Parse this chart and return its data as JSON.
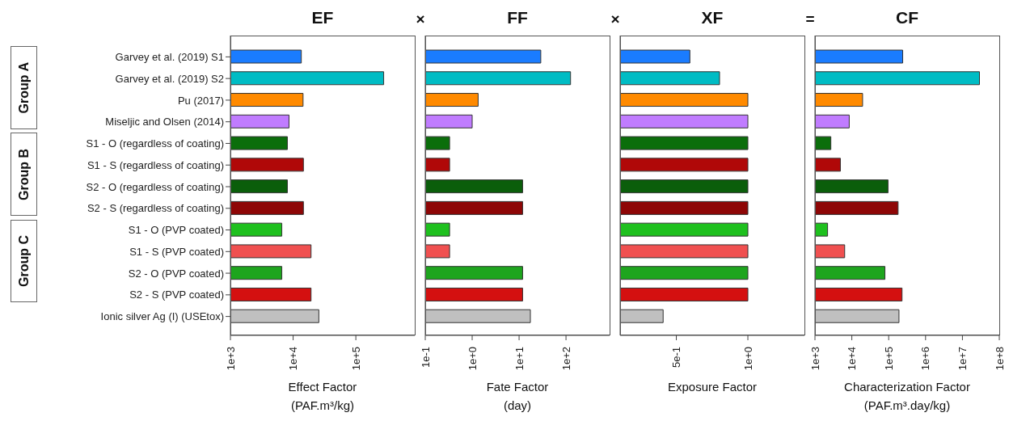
{
  "chart_data": [
    {
      "type": "bar",
      "orientation": "horizontal",
      "title": "EF",
      "xlabel": "Effect Factor\n(PAF.m³/kg)",
      "log": "x",
      "categories": [
        "Garvey et al. (2019) S1",
        "Garvey et al. (2019) S2",
        "Pu (2017)",
        "Miseljic and Olsen (2014)",
        "S1 - O (regardless of coating)",
        "S1 - S (regardless of coating)",
        "S2 - O (regardless of coating)",
        "S2 - S (regardless of coating)",
        "S1 - O (PVP coated)",
        "S1 - S (PVP coated)",
        "S2 - O  (PVP coated)",
        "S2 - S (PVP coated)",
        "Ionic silver Ag (I) (USEtox)"
      ],
      "values": [
        13500,
        278000,
        14400,
        8600,
        8100,
        14600,
        8100,
        14600,
        6600,
        19300,
        6600,
        19300,
        25700
      ],
      "colors": [
        "#1a7cff",
        "#00bcc4",
        "#ff8a00",
        "#c07cff",
        "#0b6e0b",
        "#b00808",
        "#0b5e0b",
        "#8e0606",
        "#1ec01e",
        "#f05050",
        "#1ea51e",
        "#d41010",
        "#c0c0c0"
      ],
      "xlim": [
        1000,
        870000
      ],
      "xticks": [
        {
          "value": 1000,
          "label": "1e+3"
        },
        {
          "value": 10000,
          "label": "1e+4"
        },
        {
          "value": 100000,
          "label": "1e+5"
        }
      ],
      "annotations": [
        "Group A",
        "Group B",
        "Group C"
      ]
    },
    {
      "type": "bar",
      "orientation": "horizontal",
      "title": "FF",
      "xlabel": "Fate Factor\n(day)",
      "log": "x",
      "tick_labels": "x",
      "categories": [
        null,
        null,
        null,
        null,
        null,
        null,
        null,
        null,
        null,
        null,
        null,
        null,
        null
      ],
      "values": [
        29,
        125,
        1.34,
        1.0,
        0.33,
        0.33,
        11.9,
        11.9,
        0.33,
        0.33,
        11.9,
        11.9,
        17.4
      ],
      "colors": [
        "#1a7cff",
        "#00bcc4",
        "#ff8a00",
        "#c07cff",
        "#0b6e0b",
        "#b00808",
        "#0b5e0b",
        "#8e0606",
        "#1ec01e",
        "#f05050",
        "#1ea51e",
        "#d41010",
        "#c0c0c0"
      ],
      "xlim": [
        0.1,
        850
      ],
      "xticks": [
        {
          "value": 0.1,
          "label": "1e-1"
        },
        {
          "value": 1,
          "label": "1e+0"
        },
        {
          "value": 10,
          "label": "1e+1"
        },
        {
          "value": 100,
          "label": "1e+2"
        }
      ],
      "annotations": [
        "×"
      ]
    },
    {
      "type": "bar",
      "orientation": "horizontal",
      "title": "XF",
      "xlabel": "Exposure Factor",
      "log": "x",
      "tick_labels": "x",
      "categories": [
        null,
        null,
        null,
        null,
        null,
        null,
        null,
        null,
        null,
        null,
        null,
        null,
        null
      ],
      "values": [
        0.57,
        0.76,
        1.0,
        1.0,
        1.0,
        1.0,
        1.0,
        1.0,
        1.0,
        1.0,
        1.0,
        1.0,
        0.44
      ],
      "colors": [
        "#1a7cff",
        "#00bcc4",
        "#ff8a00",
        "#c07cff",
        "#0b6e0b",
        "#b00808",
        "#0b5e0b",
        "#8e0606",
        "#1ec01e",
        "#f05050",
        "#1ea51e",
        "#d41010",
        "#c0c0c0"
      ],
      "xlim": [
        0.29,
        1.73
      ],
      "xticks": [
        {
          "value": 0.5,
          "label": "5e-1"
        },
        {
          "value": 1,
          "label": "1e+0"
        }
      ],
      "annotations": [
        "×"
      ]
    },
    {
      "type": "bar",
      "orientation": "horizontal",
      "title": "CF",
      "xlabel": "Characterization Factor\n(PAF.m³.day/kg)",
      "log": "x",
      "tick_labels": "x",
      "categories": [
        null,
        null,
        null,
        null,
        null,
        null,
        null,
        null,
        null,
        null,
        null,
        null,
        null
      ],
      "values": [
        240000,
        29000000,
        19600,
        8500,
        2700,
        4900,
        96000,
        180000,
        2200,
        6400,
        79000,
        230000,
        190000
      ],
      "colors": [
        "#1a7cff",
        "#00bcc4",
        "#ff8a00",
        "#c07cff",
        "#0b6e0b",
        "#b00808",
        "#0b5e0b",
        "#8e0606",
        "#1ec01e",
        "#f05050",
        "#1ea51e",
        "#d41010",
        "#c0c0c0"
      ],
      "xlim": [
        1000,
        100000000
      ],
      "xticks": [
        {
          "value": 1000,
          "label": "1e+3"
        },
        {
          "value": 10000,
          "label": "1e+4"
        },
        {
          "value": 100000,
          "label": "1e+5"
        },
        {
          "value": 1000000,
          "label": "1e+6"
        },
        {
          "value": 10000000,
          "label": "1e+7"
        },
        {
          "value": 100000000,
          "label": "1e+8"
        }
      ],
      "annotations": [
        "="
      ]
    }
  ]
}
